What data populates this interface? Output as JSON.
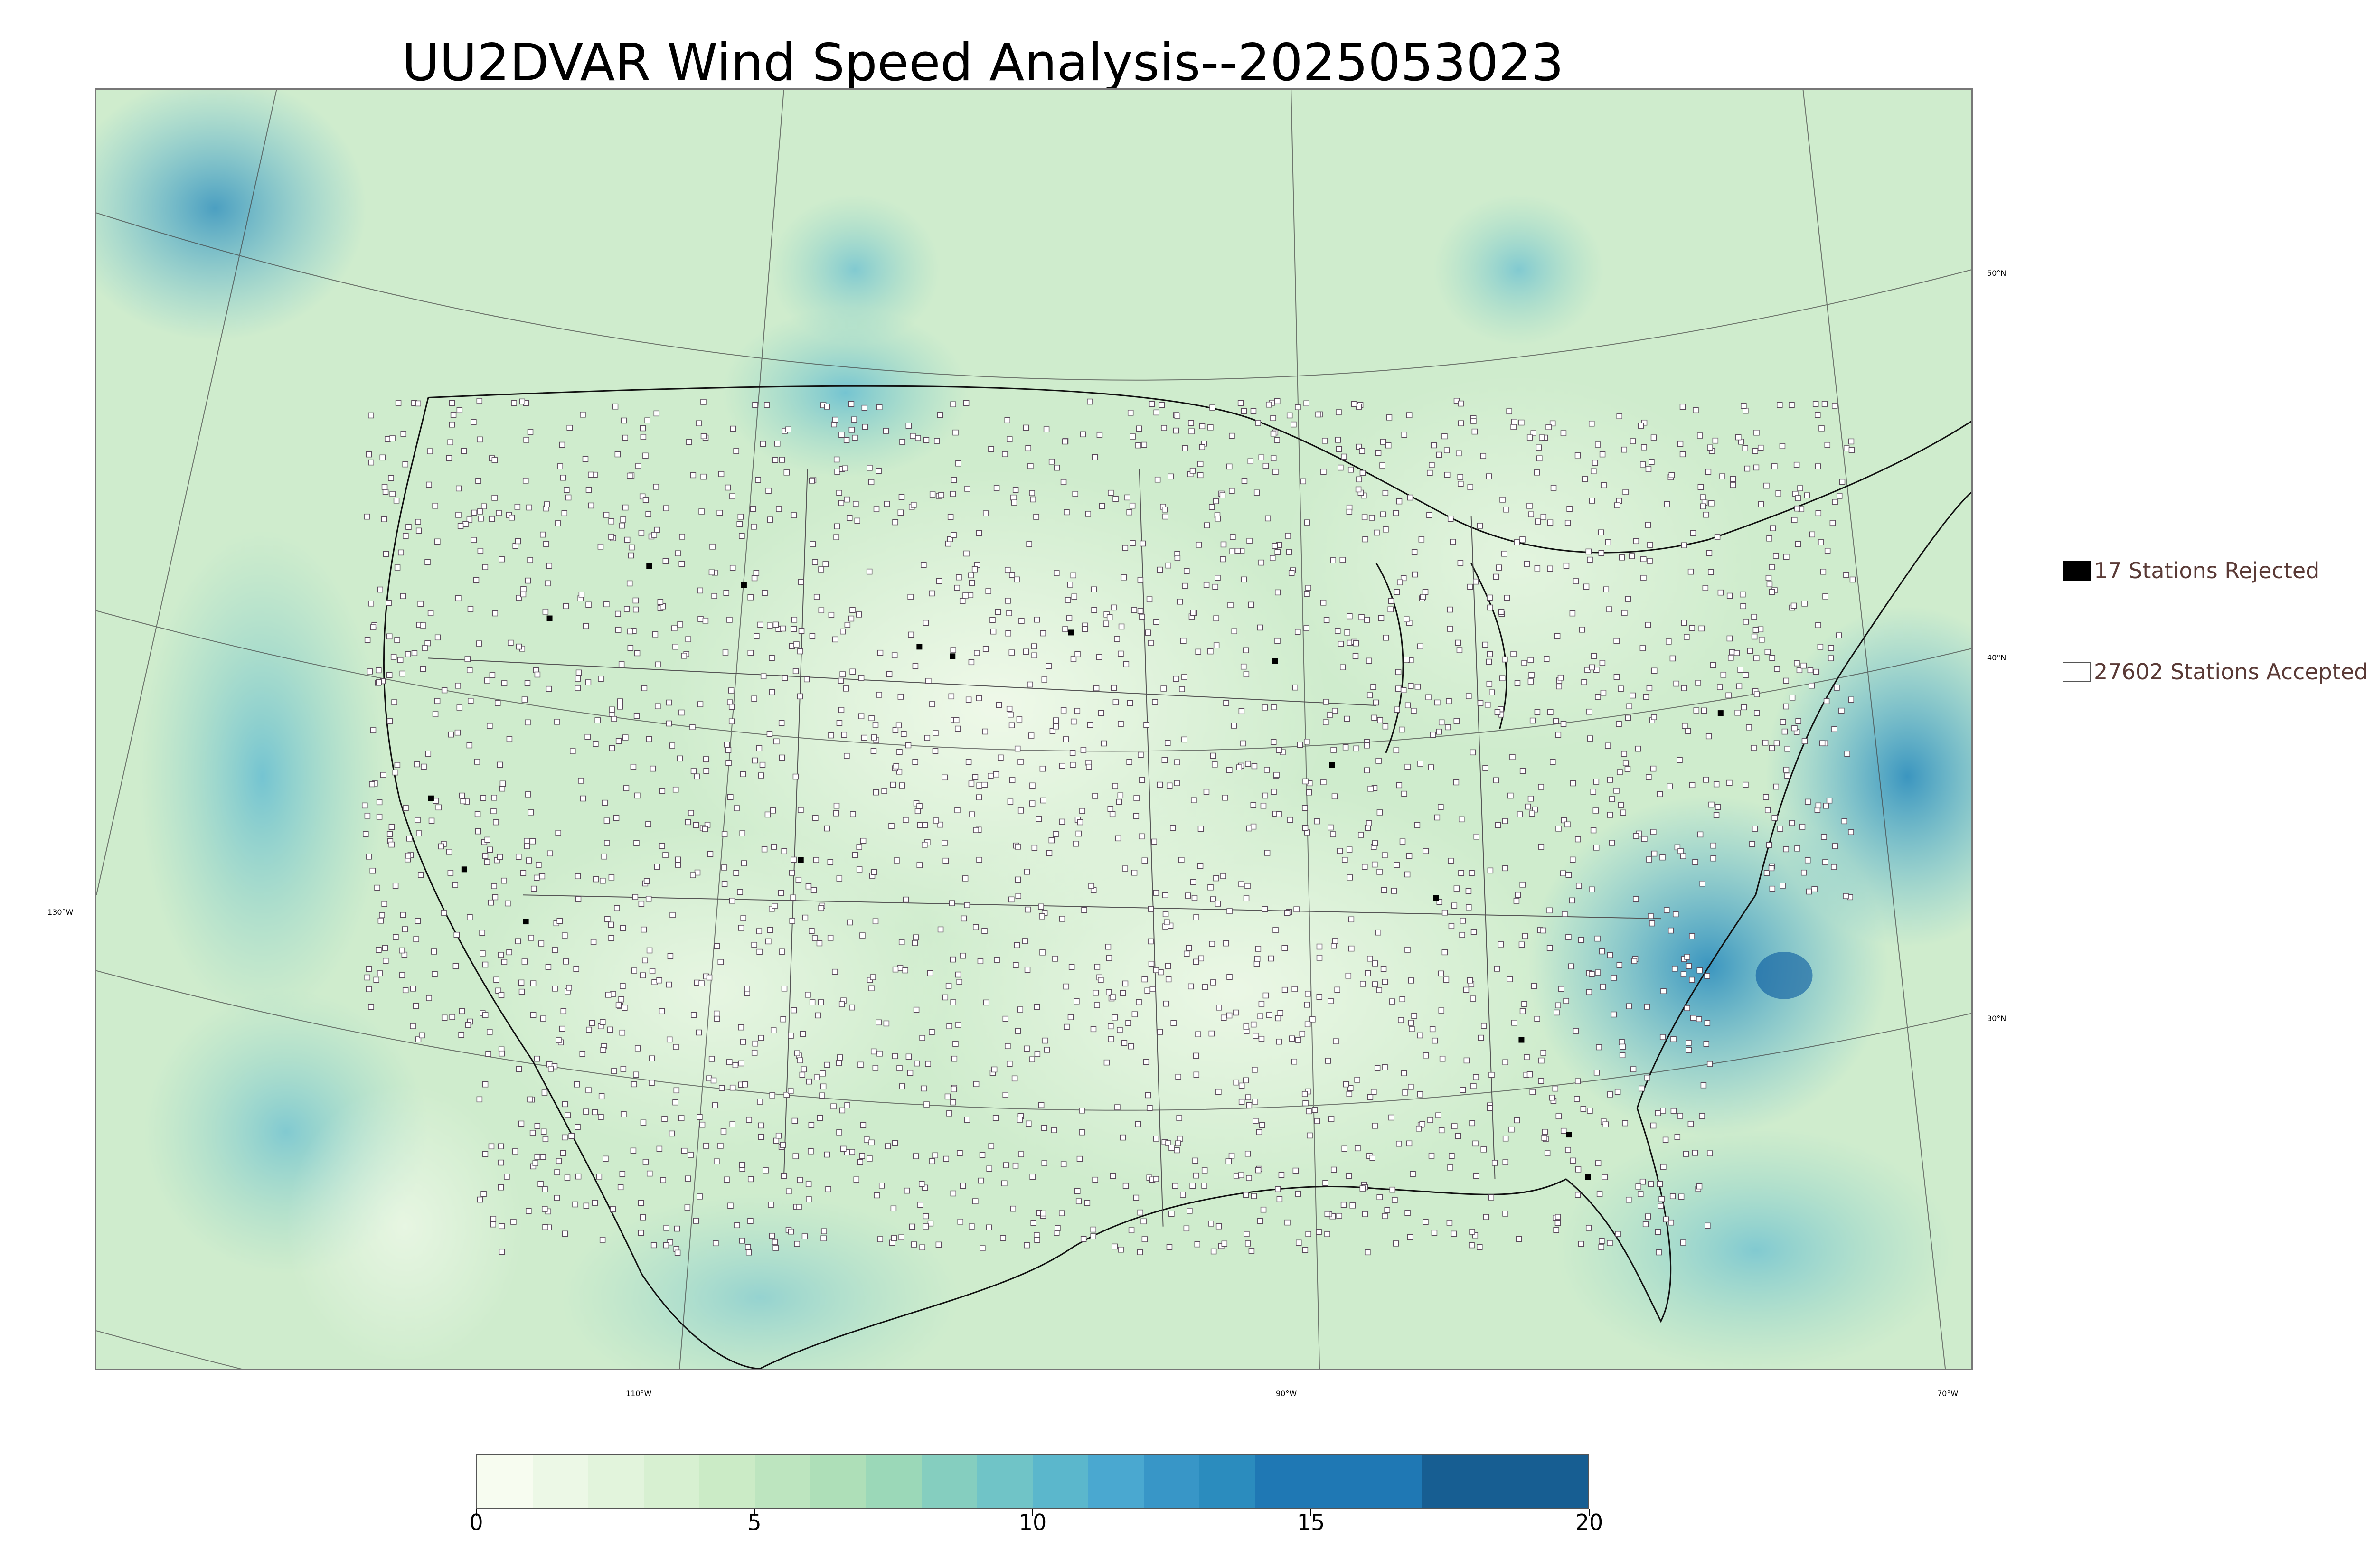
{
  "title": "UU2DVAR Wind Speed Analysis--2025053023",
  "map": {
    "projection": "lambert-conformal",
    "region": "CONUS",
    "field_colormap": [
      "#f7fcf0",
      "#e0f3db",
      "#ccebc5",
      "#a8ddb5",
      "#7bccc4",
      "#4eb3d3",
      "#2b8cbe",
      "#08589e"
    ],
    "lon_labels": [
      "130°W",
      "110°W",
      "90°W",
      "70°W"
    ],
    "lat_labels": [
      "50°N",
      "40°N",
      "30°N"
    ]
  },
  "legend": {
    "rejected": {
      "label": "17 Stations Rejected",
      "color": "#000000"
    },
    "accepted": {
      "label": "27602 Stations Accepted",
      "color": "#ffffff"
    }
  },
  "colorbar": {
    "min": 0,
    "max": 20,
    "tick_labels": [
      "0",
      "5",
      "10",
      "15",
      "20"
    ],
    "bounds": [
      0,
      1,
      2,
      3,
      4,
      5,
      6,
      7,
      8,
      9,
      10,
      11,
      12,
      13,
      14,
      17,
      20
    ],
    "colors": [
      "#f7fcf0",
      "#ecf8e6",
      "#e2f4dc",
      "#d7f0d1",
      "#cbebc6",
      "#bde5bf",
      "#aedfb8",
      "#9bd8b8",
      "#85cebf",
      "#70c4c7",
      "#5bb7cc",
      "#4aa8d0",
      "#3896c7",
      "#2b8cbe",
      "#1f78b4",
      "#175e92"
    ]
  }
}
